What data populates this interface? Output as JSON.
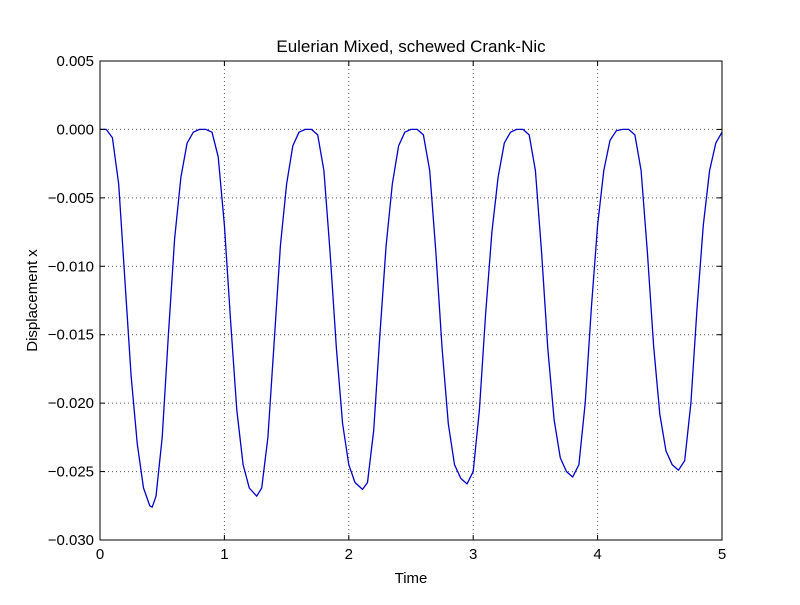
{
  "chart_data": {
    "type": "line",
    "title": "Eulerian Mixed, schewed Crank-Nic",
    "xlabel": "Time",
    "ylabel": "Displacement x",
    "xlim": [
      0,
      5
    ],
    "ylim": [
      -0.03,
      0.005
    ],
    "xticks": [
      0,
      1,
      2,
      3,
      4,
      5
    ],
    "xtick_labels": [
      "0",
      "1",
      "2",
      "3",
      "4",
      "5"
    ],
    "yticks": [
      0.005,
      0.0,
      -0.005,
      -0.01,
      -0.015,
      -0.02,
      -0.025,
      -0.03
    ],
    "ytick_labels": [
      "0.005",
      "0.000",
      "−0.005",
      "−0.010",
      "−0.015",
      "−0.020",
      "−0.025",
      "−0.030"
    ],
    "grid": true,
    "grid_style": "dotted",
    "legend": "none",
    "series": [
      {
        "color": "#0000c8",
        "points": [
          [
            0.0,
            0.0
          ],
          [
            0.05,
            0.0
          ],
          [
            0.1,
            -0.0006
          ],
          [
            0.15,
            -0.004
          ],
          [
            0.2,
            -0.011
          ],
          [
            0.25,
            -0.018
          ],
          [
            0.3,
            -0.023
          ],
          [
            0.35,
            -0.0262
          ],
          [
            0.4,
            -0.0275
          ],
          [
            0.42,
            -0.0276
          ],
          [
            0.45,
            -0.0268
          ],
          [
            0.5,
            -0.0225
          ],
          [
            0.55,
            -0.015
          ],
          [
            0.6,
            -0.008
          ],
          [
            0.65,
            -0.0035
          ],
          [
            0.7,
            -0.001
          ],
          [
            0.75,
            -0.0002
          ],
          [
            0.8,
            0.0
          ],
          [
            0.85,
            0.0
          ],
          [
            0.9,
            -0.0002
          ],
          [
            0.95,
            -0.002
          ],
          [
            1.0,
            -0.007
          ],
          [
            1.05,
            -0.014
          ],
          [
            1.1,
            -0.0205
          ],
          [
            1.15,
            -0.0245
          ],
          [
            1.2,
            -0.0262
          ],
          [
            1.26,
            -0.0268
          ],
          [
            1.3,
            -0.0262
          ],
          [
            1.35,
            -0.0225
          ],
          [
            1.4,
            -0.0155
          ],
          [
            1.45,
            -0.0085
          ],
          [
            1.5,
            -0.004
          ],
          [
            1.55,
            -0.0012
          ],
          [
            1.6,
            -0.0002
          ],
          [
            1.65,
            0.0
          ],
          [
            1.7,
            0.0
          ],
          [
            1.75,
            -0.0004
          ],
          [
            1.8,
            -0.003
          ],
          [
            1.85,
            -0.009
          ],
          [
            1.9,
            -0.016
          ],
          [
            1.95,
            -0.0215
          ],
          [
            2.0,
            -0.0245
          ],
          [
            2.05,
            -0.0258
          ],
          [
            2.11,
            -0.0263
          ],
          [
            2.15,
            -0.0258
          ],
          [
            2.2,
            -0.022
          ],
          [
            2.25,
            -0.015
          ],
          [
            2.3,
            -0.0085
          ],
          [
            2.35,
            -0.004
          ],
          [
            2.4,
            -0.0012
          ],
          [
            2.45,
            -0.0002
          ],
          [
            2.5,
            0.0
          ],
          [
            2.55,
            0.0
          ],
          [
            2.6,
            -0.0004
          ],
          [
            2.65,
            -0.003
          ],
          [
            2.7,
            -0.009
          ],
          [
            2.75,
            -0.016
          ],
          [
            2.8,
            -0.0215
          ],
          [
            2.85,
            -0.0245
          ],
          [
            2.9,
            -0.0255
          ],
          [
            2.95,
            -0.0259
          ],
          [
            3.0,
            -0.025
          ],
          [
            3.05,
            -0.0205
          ],
          [
            3.1,
            -0.0135
          ],
          [
            3.15,
            -0.0075
          ],
          [
            3.2,
            -0.0035
          ],
          [
            3.25,
            -0.001
          ],
          [
            3.3,
            -0.0002
          ],
          [
            3.35,
            0.0
          ],
          [
            3.4,
            0.0
          ],
          [
            3.45,
            -0.0004
          ],
          [
            3.5,
            -0.003
          ],
          [
            3.55,
            -0.009
          ],
          [
            3.6,
            -0.016
          ],
          [
            3.65,
            -0.0212
          ],
          [
            3.7,
            -0.024
          ],
          [
            3.75,
            -0.025
          ],
          [
            3.8,
            -0.0254
          ],
          [
            3.85,
            -0.0245
          ],
          [
            3.9,
            -0.02
          ],
          [
            3.95,
            -0.013
          ],
          [
            4.0,
            -0.007
          ],
          [
            4.05,
            -0.003
          ],
          [
            4.1,
            -0.0008
          ],
          [
            4.15,
            -0.0001
          ],
          [
            4.2,
            0.0
          ],
          [
            4.25,
            0.0
          ],
          [
            4.3,
            -0.0004
          ],
          [
            4.35,
            -0.003
          ],
          [
            4.4,
            -0.009
          ],
          [
            4.45,
            -0.0158
          ],
          [
            4.5,
            -0.0208
          ],
          [
            4.55,
            -0.0235
          ],
          [
            4.6,
            -0.0245
          ],
          [
            4.65,
            -0.0249
          ],
          [
            4.7,
            -0.0242
          ],
          [
            4.75,
            -0.02
          ],
          [
            4.8,
            -0.013
          ],
          [
            4.85,
            -0.007
          ],
          [
            4.9,
            -0.003
          ],
          [
            4.95,
            -0.001
          ],
          [
            5.0,
            -0.0002
          ]
        ]
      }
    ]
  }
}
